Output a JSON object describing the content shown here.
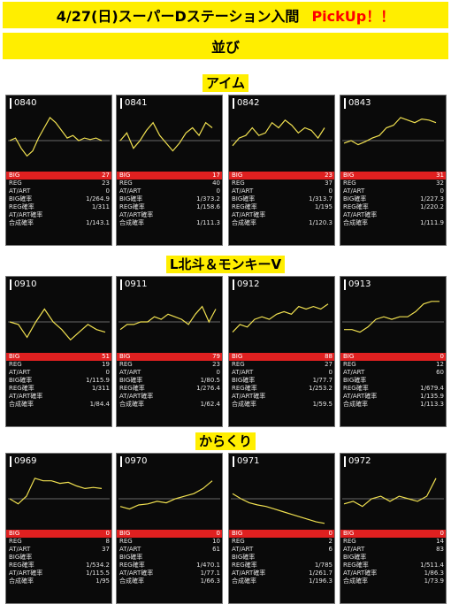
{
  "header": {
    "title": "4/27(日)スーパーDステーション入間",
    "pickup": "PickUp！！"
  },
  "subheader": "並び",
  "sections": [
    {
      "label": "アイム",
      "cards": [
        {
          "num": "0840",
          "stats": [
            [
              "BIG",
              "27"
            ],
            [
              "REG",
              "23"
            ],
            [
              "AT/ART",
              "0"
            ],
            [
              "BIG確率",
              "1/264.9"
            ],
            [
              "REG確率",
              "1/311"
            ],
            [
              "AT/ART確率",
              ""
            ],
            [
              "合成確率",
              "1/143.1"
            ]
          ]
        },
        {
          "num": "0841",
          "stats": [
            [
              "BIG",
              "17"
            ],
            [
              "REG",
              "40"
            ],
            [
              "AT/ART",
              "0"
            ],
            [
              "BIG確率",
              "1/373.2"
            ],
            [
              "REG確率",
              "1/158.6"
            ],
            [
              "AT/ART確率",
              ""
            ],
            [
              "合成確率",
              "1/111.3"
            ]
          ]
        },
        {
          "num": "0842",
          "stats": [
            [
              "BIG",
              "23"
            ],
            [
              "REG",
              "37"
            ],
            [
              "AT/ART",
              "0"
            ],
            [
              "BIG確率",
              "1/313.7"
            ],
            [
              "REG確率",
              "1/195"
            ],
            [
              "AT/ART確率",
              ""
            ],
            [
              "合成確率",
              "1/120.3"
            ]
          ]
        },
        {
          "num": "0843",
          "stats": [
            [
              "BIG",
              "31"
            ],
            [
              "REG",
              "32"
            ],
            [
              "AT/ART",
              "0"
            ],
            [
              "BIG確率",
              "1/227.3"
            ],
            [
              "REG確率",
              "1/220.2"
            ],
            [
              "AT/ART確率",
              ""
            ],
            [
              "合成確率",
              "1/111.9"
            ]
          ]
        }
      ]
    },
    {
      "label": "L北斗＆モンキーV",
      "cards": [
        {
          "num": "0910",
          "stats": [
            [
              "BIG",
              "51"
            ],
            [
              "REG",
              "19"
            ],
            [
              "AT/ART",
              "0"
            ],
            [
              "BIG確率",
              "1/115.9"
            ],
            [
              "REG確率",
              "1/311"
            ],
            [
              "AT/ART確率",
              ""
            ],
            [
              "合成確率",
              "1/84.4"
            ]
          ]
        },
        {
          "num": "0911",
          "stats": [
            [
              "BIG",
              "79"
            ],
            [
              "REG",
              "23"
            ],
            [
              "AT/ART",
              "0"
            ],
            [
              "BIG確率",
              "1/80.5"
            ],
            [
              "REG確率",
              "1/276.4"
            ],
            [
              "AT/ART確率",
              ""
            ],
            [
              "合成確率",
              "1/62.4"
            ]
          ]
        },
        {
          "num": "0912",
          "stats": [
            [
              "BIG",
              "88"
            ],
            [
              "REG",
              "27"
            ],
            [
              "AT/ART",
              "0"
            ],
            [
              "BIG確率",
              "1/77.7"
            ],
            [
              "REG確率",
              "1/253.2"
            ],
            [
              "AT/ART確率",
              ""
            ],
            [
              "合成確率",
              "1/59.5"
            ]
          ]
        },
        {
          "num": "0913",
          "stats": [
            [
              "BIG",
              "0"
            ],
            [
              "REG",
              "12"
            ],
            [
              "AT/ART",
              "60"
            ],
            [
              "BIG確率",
              ""
            ],
            [
              "REG確率",
              "1/679.4"
            ],
            [
              "AT/ART確率",
              "1/135.9"
            ],
            [
              "合成確率",
              "1/113.3"
            ]
          ]
        }
      ]
    },
    {
      "label": "からくり",
      "cards": [
        {
          "num": "0969",
          "stats": [
            [
              "BIG",
              "0"
            ],
            [
              "REG",
              "8"
            ],
            [
              "AT/ART",
              "37"
            ],
            [
              "BIG確率",
              ""
            ],
            [
              "REG確率",
              "1/534.2"
            ],
            [
              "AT/ART確率",
              "1/115.5"
            ],
            [
              "合成確率",
              "1/95"
            ]
          ]
        },
        {
          "num": "0970",
          "stats": [
            [
              "BIG",
              "0"
            ],
            [
              "REG",
              "10"
            ],
            [
              "AT/ART",
              "61"
            ],
            [
              "BIG確率",
              ""
            ],
            [
              "REG確率",
              "1/470.1"
            ],
            [
              "AT/ART確率",
              "1/77.1"
            ],
            [
              "合成確率",
              "1/66.3"
            ]
          ]
        },
        {
          "num": "0971",
          "stats": [
            [
              "BIG",
              "0"
            ],
            [
              "REG",
              "2"
            ],
            [
              "AT/ART",
              "6"
            ],
            [
              "BIG確率",
              ""
            ],
            [
              "REG確率",
              "1/785"
            ],
            [
              "AT/ART確率",
              "1/261.7"
            ],
            [
              "合成確率",
              "1/196.3"
            ]
          ]
        },
        {
          "num": "0972",
          "stats": [
            [
              "BIG",
              "0"
            ],
            [
              "REG",
              "14"
            ],
            [
              "AT/ART",
              "83"
            ],
            [
              "BIG確率",
              ""
            ],
            [
              "REG確率",
              "1/511.4"
            ],
            [
              "AT/ART確率",
              "1/86.3"
            ],
            [
              "合成確率",
              "1/73.9"
            ]
          ]
        }
      ]
    }
  ],
  "colors": {
    "highlight": "#ffee00",
    "pickup": "#ff0000",
    "big_row": "#e02020",
    "line": "#f0e050",
    "panel": "#0a0a0a"
  }
}
